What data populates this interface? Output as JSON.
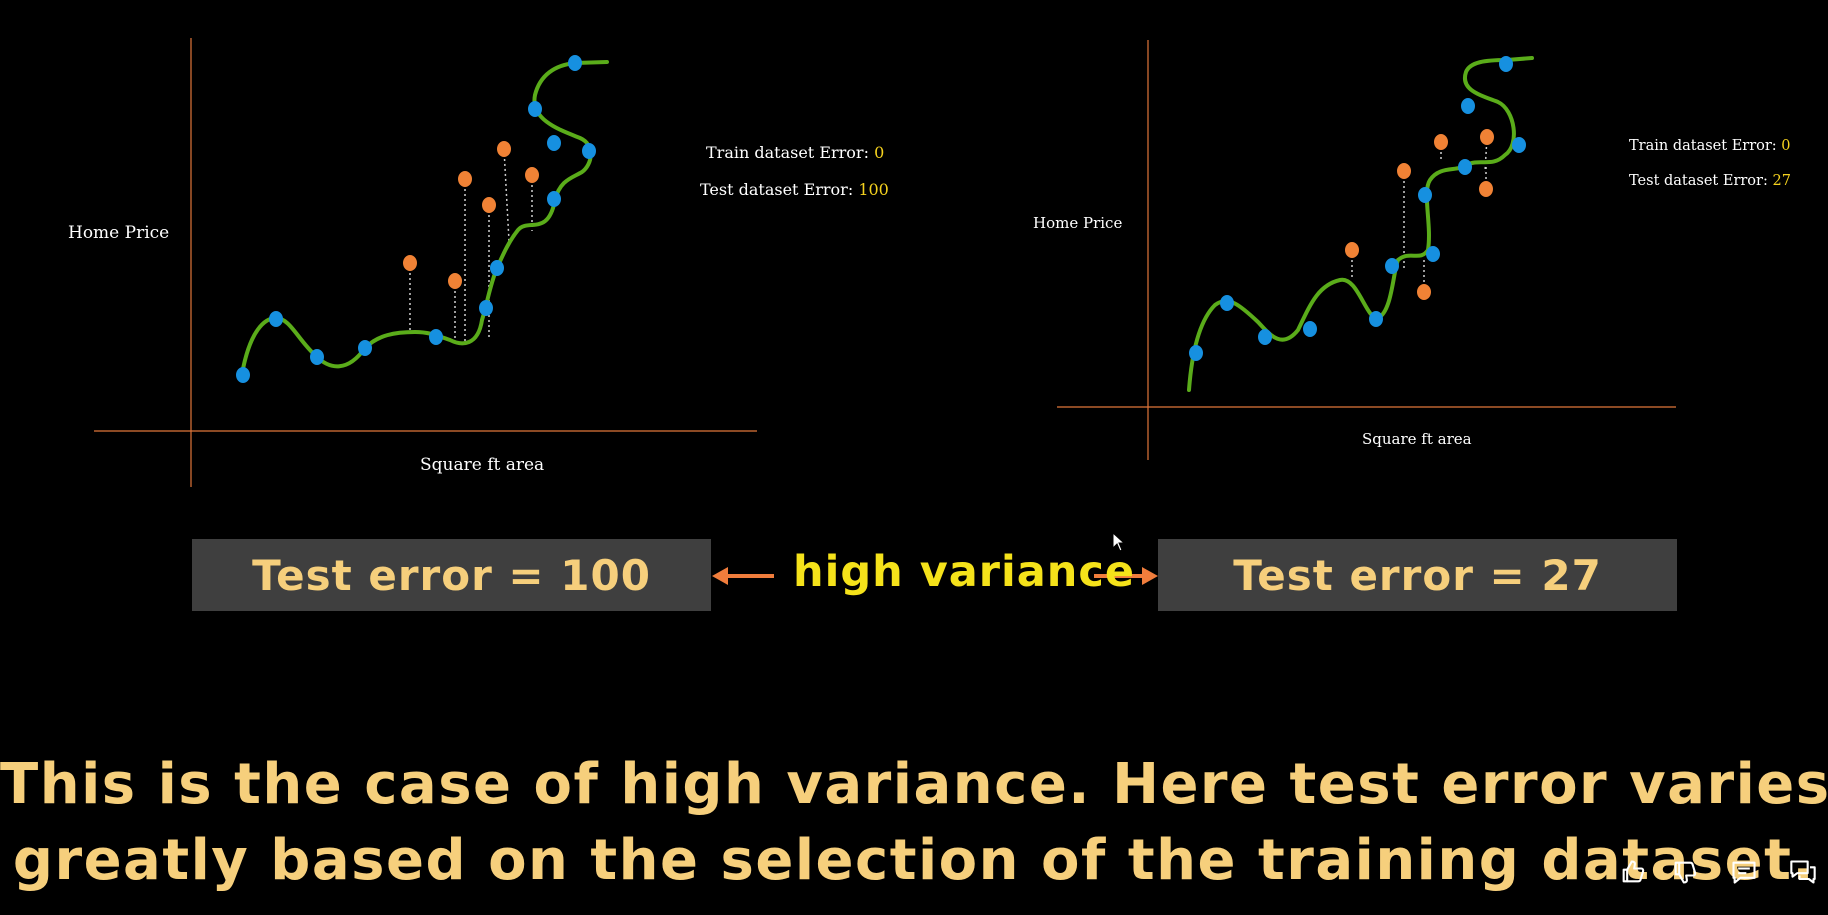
{
  "colors": {
    "background": "#000000",
    "axis": "#e0763a",
    "fit_curve": "#5aac1a",
    "train_point": "#1690e0",
    "test_point": "#f08235",
    "error_value": "#f5d21e",
    "box_fill": "#3f3f3f",
    "box_text": "#f6cf7c",
    "variance_text": "#f5e21a",
    "arrow": "#f07d3c",
    "caption_text": "#f6cf7c"
  },
  "left_plot": {
    "ylabel": "Home Price",
    "xlabel": "Square ft area",
    "train_error_label": "Train dataset Error:",
    "train_error_value": "0",
    "test_error_label": "Test dataset Error:",
    "test_error_value": "100"
  },
  "right_plot": {
    "ylabel": "Home Price",
    "xlabel": "Square ft area",
    "train_error_label": "Train dataset Error:",
    "train_error_value": "0",
    "test_error_label": "Test dataset Error:",
    "test_error_value": "27"
  },
  "comparison": {
    "left_box": "Test error = 100",
    "center_label": "high variance",
    "right_box": "Test error = 27"
  },
  "caption": {
    "line1": "This is the case of high variance. Here test error varies",
    "line2": "greatly based on the selection of the training dataset."
  },
  "toolbar": {
    "icons": [
      "thumbs-up-icon",
      "thumbs-down-icon",
      "comment-icon",
      "chat-icon"
    ]
  }
}
